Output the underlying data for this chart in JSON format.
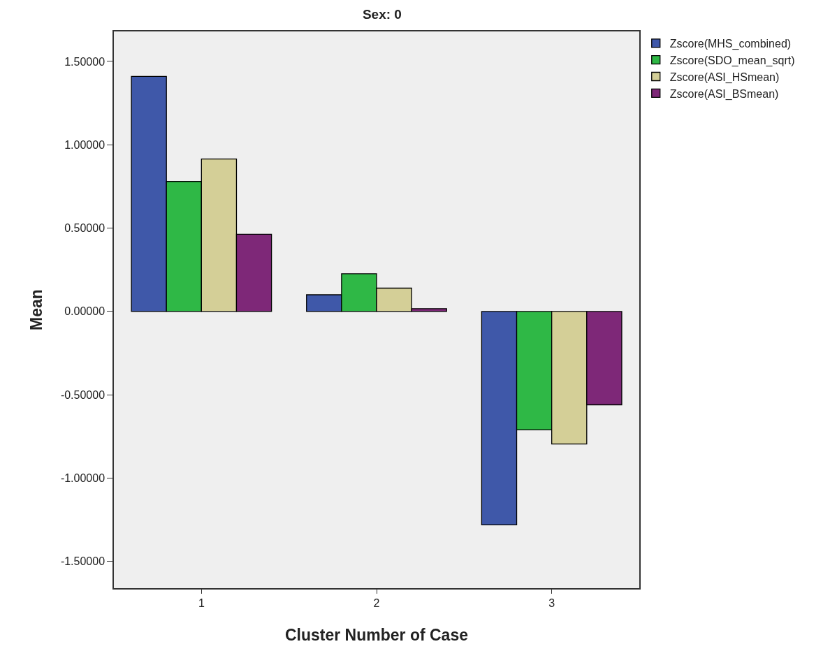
{
  "chart_data": {
    "type": "bar",
    "title": "Sex: 0",
    "xlabel": "Cluster Number of Case",
    "ylabel": "Mean",
    "categories": [
      "1",
      "2",
      "3"
    ],
    "series": [
      {
        "name": "Zscore(MHS_combined)",
        "color": "#3f58a9",
        "values": [
          1.41,
          0.1,
          -1.28
        ]
      },
      {
        "name": "Zscore(SDO_mean_sqrt)",
        "color": "#2fb846",
        "values": [
          0.78,
          0.226,
          -0.71
        ]
      },
      {
        "name": "Zscore(ASI_HSmean)",
        "color": "#d4cf97",
        "values": [
          0.915,
          0.14,
          -0.795
        ]
      },
      {
        "name": "Zscore(ASI_BSmean)",
        "color": "#7e2878",
        "values": [
          0.463,
          0.017,
          -0.56
        ]
      }
    ],
    "ylim": [
      -1.66,
      1.68
    ],
    "yticks": [
      {
        "value": -1.5,
        "label": "-1.50000"
      },
      {
        "value": -1,
        "label": "-1.00000"
      },
      {
        "value": -0.5,
        "label": "-0.50000"
      },
      {
        "value": 0,
        "label": "0.00000"
      },
      {
        "value": 0.5,
        "label": "0.50000"
      },
      {
        "value": 1,
        "label": "1.00000"
      },
      {
        "value": 1.5,
        "label": "1.50000"
      }
    ],
    "grid": false,
    "legend": "top right"
  }
}
